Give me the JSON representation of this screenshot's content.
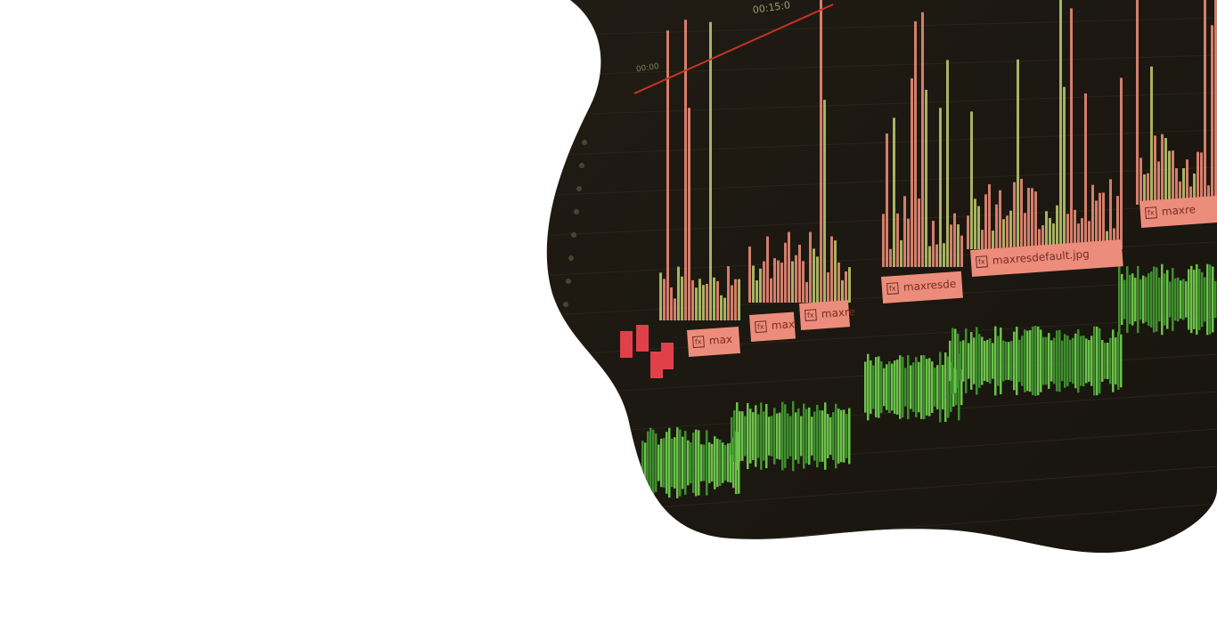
{
  "timeline": {
    "timecodes": [
      "00:15:0",
      "00:00"
    ],
    "fx": "fx",
    "clips": [
      "max",
      "max",
      "maxre",
      "maxresde",
      "maxresdefault.jpg",
      "maxre"
    ]
  }
}
